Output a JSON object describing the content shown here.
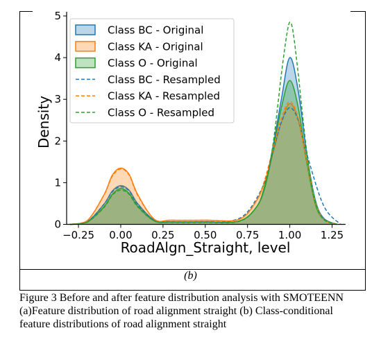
{
  "panel_label": "(b)",
  "caption": {
    "lines": [
      "Figure 3 Before and after feature distribution analysis with SMOTEENN",
      "(a)Feature distribution of road alignment straight (b) Class-conditional",
      "feature distributions of road alignment straight"
    ]
  },
  "colors": {
    "BC": "#1f77b4",
    "KA": "#ff7f0e",
    "O": "#2ca02c"
  },
  "chart_data": {
    "type": "area",
    "title": "",
    "xlabel": "RoadAlgn_Straight, level",
    "ylabel": "Density",
    "xlim": [
      -0.32,
      1.33
    ],
    "ylim": [
      0,
      5.1
    ],
    "xticks": [
      "−0.25",
      "0.00",
      "0.25",
      "0.50",
      "0.75",
      "1.00",
      "1.25"
    ],
    "xtick_values": [
      -0.25,
      0.0,
      0.25,
      0.5,
      0.75,
      1.0,
      1.25
    ],
    "yticks": [
      "0",
      "1",
      "2",
      "3",
      "4",
      "5"
    ],
    "ytick_values": [
      0,
      1,
      2,
      3,
      4,
      5
    ],
    "legend_position": "top-left",
    "grid": false,
    "series": [
      {
        "name": "Class BC - Original",
        "class": "BC",
        "style": "filled",
        "x": [
          -0.3,
          -0.2,
          -0.1,
          -0.05,
          0.0,
          0.05,
          0.1,
          0.2,
          0.3,
          0.5,
          0.7,
          0.8,
          0.85,
          0.9,
          0.95,
          1.0,
          1.05,
          1.1,
          1.15,
          1.2,
          1.28
        ],
        "y": [
          0.0,
          0.06,
          0.48,
          0.8,
          0.93,
          0.82,
          0.5,
          0.1,
          0.06,
          0.06,
          0.08,
          0.4,
          0.9,
          1.85,
          3.0,
          4.0,
          3.2,
          1.7,
          0.6,
          0.15,
          0.0
        ]
      },
      {
        "name": "Class KA - Original",
        "class": "KA",
        "style": "filled",
        "x": [
          -0.3,
          -0.2,
          -0.1,
          -0.05,
          0.0,
          0.05,
          0.1,
          0.2,
          0.3,
          0.5,
          0.7,
          0.8,
          0.85,
          0.9,
          0.95,
          1.0,
          1.05,
          1.1,
          1.15,
          1.2,
          1.28
        ],
        "y": [
          0.0,
          0.08,
          0.7,
          1.18,
          1.35,
          1.2,
          0.72,
          0.12,
          0.1,
          0.1,
          0.12,
          0.55,
          1.0,
          1.7,
          2.45,
          2.9,
          2.5,
          1.5,
          0.55,
          0.12,
          0.0
        ]
      },
      {
        "name": "Class O - Original",
        "class": "O",
        "style": "filled",
        "x": [
          -0.3,
          -0.2,
          -0.1,
          -0.05,
          0.0,
          0.05,
          0.1,
          0.2,
          0.3,
          0.5,
          0.7,
          0.8,
          0.85,
          0.9,
          0.95,
          1.0,
          1.05,
          1.1,
          1.15,
          1.2,
          1.28
        ],
        "y": [
          0.0,
          0.05,
          0.42,
          0.72,
          0.86,
          0.74,
          0.44,
          0.08,
          0.06,
          0.06,
          0.08,
          0.4,
          0.85,
          1.75,
          2.8,
          3.45,
          2.8,
          1.5,
          0.5,
          0.12,
          0.0
        ]
      },
      {
        "name": "Class BC - Resampled",
        "class": "BC",
        "style": "dashed",
        "x": [
          -0.3,
          -0.2,
          -0.1,
          -0.05,
          0.0,
          0.05,
          0.1,
          0.2,
          0.3,
          0.5,
          0.65,
          0.75,
          0.85,
          0.9,
          0.95,
          1.0,
          1.05,
          1.1,
          1.2,
          1.3
        ],
        "y": [
          0.0,
          0.06,
          0.48,
          0.78,
          0.9,
          0.8,
          0.48,
          0.1,
          0.06,
          0.06,
          0.08,
          0.3,
          1.0,
          1.75,
          2.45,
          2.8,
          2.5,
          1.7,
          0.45,
          0.0
        ]
      },
      {
        "name": "Class KA - Resampled",
        "class": "KA",
        "style": "dashed",
        "x": [
          -0.3,
          -0.2,
          -0.1,
          -0.05,
          0.0,
          0.05,
          0.1,
          0.2,
          0.3,
          0.5,
          0.7,
          0.8,
          0.85,
          0.9,
          0.95,
          1.0,
          1.05,
          1.1,
          1.15,
          1.2,
          1.28
        ],
        "y": [
          0.0,
          0.08,
          0.7,
          1.15,
          1.33,
          1.18,
          0.7,
          0.12,
          0.1,
          0.1,
          0.12,
          0.55,
          1.05,
          1.8,
          2.55,
          2.95,
          2.55,
          1.55,
          0.55,
          0.12,
          0.0
        ]
      },
      {
        "name": "Class O - Resampled",
        "class": "O",
        "style": "dashed",
        "x": [
          -0.3,
          -0.2,
          -0.1,
          -0.05,
          0.0,
          0.05,
          0.1,
          0.2,
          0.3,
          0.5,
          0.7,
          0.8,
          0.85,
          0.9,
          0.95,
          0.98,
          1.0,
          1.02,
          1.05,
          1.1,
          1.15,
          1.2,
          1.28
        ],
        "y": [
          0.0,
          0.05,
          0.4,
          0.7,
          0.82,
          0.72,
          0.42,
          0.08,
          0.05,
          0.05,
          0.07,
          0.4,
          0.9,
          1.9,
          3.6,
          4.5,
          4.85,
          4.6,
          3.6,
          1.75,
          0.55,
          0.12,
          0.0
        ]
      }
    ]
  }
}
